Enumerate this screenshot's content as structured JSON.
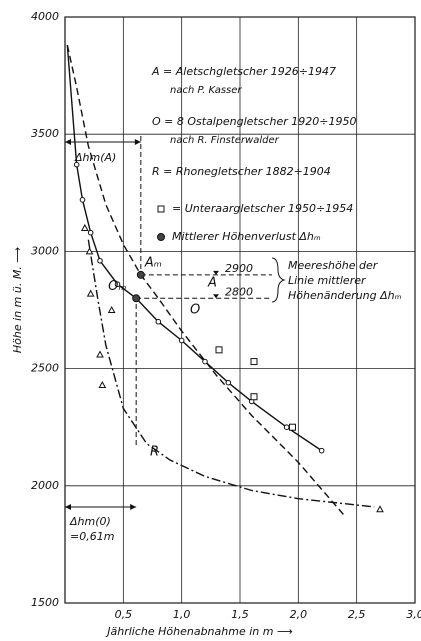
{
  "chart_data": {
    "type": "line",
    "xlabel": "Jährliche Höhenabnahme in m ⟶",
    "ylabel": "Höhe in m ü. M. ⟶",
    "xlim": [
      0,
      3.0
    ],
    "ylim": [
      1500,
      4000
    ],
    "xticks": [
      {
        "value": 0.5,
        "label": "0,5"
      },
      {
        "value": 1.0,
        "label": "1,0"
      },
      {
        "value": 1.5,
        "label": "1,5"
      },
      {
        "value": 2.0,
        "label": "2,0"
      },
      {
        "value": 2.5,
        "label": "2,5"
      },
      {
        "value": 3.0,
        "label": "3,0"
      }
    ],
    "yticks": [
      1500,
      2000,
      2500,
      3000,
      3500,
      4000
    ],
    "grid": true,
    "series": [
      {
        "name": "A",
        "style": "dashed",
        "x": [
          0.02,
          0.1,
          0.2,
          0.35,
          0.5,
          0.65,
          0.8,
          1.0,
          1.3,
          1.6,
          2.0,
          2.4
        ],
        "values": [
          3880,
          3700,
          3450,
          3200,
          3030,
          2900,
          2800,
          2660,
          2470,
          2300,
          2100,
          1870
        ]
      },
      {
        "name": "O",
        "style": "solid",
        "marker": "circle",
        "x": [
          0.02,
          0.1,
          0.15,
          0.22,
          0.3,
          0.45,
          0.61,
          0.8,
          1.0,
          1.2,
          1.4,
          1.6,
          1.9,
          2.2
        ],
        "values": [
          3880,
          3370,
          3220,
          3080,
          2960,
          2860,
          2800,
          2700,
          2620,
          2530,
          2440,
          2360,
          2250,
          2150
        ]
      },
      {
        "name": "R",
        "style": "dashdot",
        "x": [
          0.2,
          0.28,
          0.35,
          0.5,
          0.7,
          0.9,
          1.2,
          1.6,
          2.0,
          2.65
        ],
        "values": [
          3050,
          2800,
          2600,
          2330,
          2180,
          2110,
          2040,
          1980,
          1945,
          1910
        ]
      }
    ],
    "points": [
      {
        "marker": "triangle",
        "x": [
          0.17,
          0.21,
          0.22,
          0.4,
          0.3,
          0.32,
          2.7
        ],
        "values": [
          3100,
          3000,
          2820,
          2750,
          2560,
          2430,
          1900
        ]
      },
      {
        "marker": "square",
        "x": [
          1.32,
          1.62,
          1.62,
          1.95
        ],
        "values": [
          2580,
          2530,
          2380,
          2250
        ]
      }
    ],
    "mean_points": [
      {
        "label": "Aₘ",
        "x": 0.65,
        "y": 2900
      },
      {
        "label": "Oₘ",
        "x": 0.61,
        "y": 2800
      }
    ],
    "delta_a": "Δhm(A)",
    "delta_o": {
      "label": "Δhm(0)",
      "value_label": "=0,61m"
    },
    "bracket": [
      "Meereshöhe der",
      "Linie mittlerer",
      "Höhenänderung Δhₘ"
    ],
    "legend": [
      {
        "text": "A = Aletschgletscher 1926÷1947",
        "note": "nach P. Kasser"
      },
      {
        "text": "O = 8 Ostalpengletscher 1920÷1950",
        "note": "nach R. Finsterwalder"
      },
      {
        "text": "R = Rhonegletscher 1882÷1904"
      },
      {
        "text": "= Unteraargletscher 1950÷1954"
      },
      {
        "text": "Mittlerer Höhenverlust Δhₘ"
      }
    ]
  }
}
